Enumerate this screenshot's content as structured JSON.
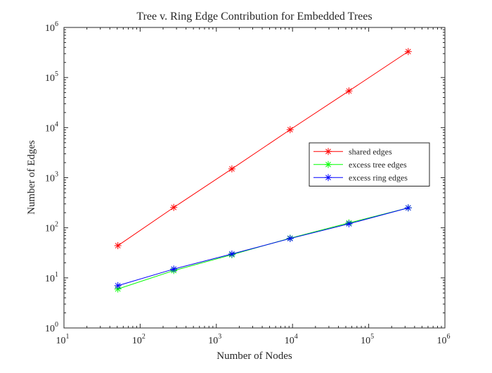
{
  "chart_data": {
    "type": "line",
    "title": "Tree v. Ring Edge Contribution for Embedded Trees",
    "xlabel": "Number of Nodes",
    "ylabel": "Number of Edges",
    "x_scale": "log",
    "y_scale": "log",
    "xlim": [
      10,
      1000000
    ],
    "ylim": [
      1,
      1000000
    ],
    "grid": false,
    "legend_position": "right",
    "x_ticks": [
      {
        "base": "10",
        "exp": "1",
        "value": 10
      },
      {
        "base": "10",
        "exp": "2",
        "value": 100
      },
      {
        "base": "10",
        "exp": "3",
        "value": 1000
      },
      {
        "base": "10",
        "exp": "4",
        "value": 10000
      },
      {
        "base": "10",
        "exp": "5",
        "value": 100000
      },
      {
        "base": "10",
        "exp": "6",
        "value": 1000000
      }
    ],
    "y_ticks": [
      {
        "base": "10",
        "exp": "0",
        "value": 1
      },
      {
        "base": "10",
        "exp": "1",
        "value": 10
      },
      {
        "base": "10",
        "exp": "2",
        "value": 100
      },
      {
        "base": "10",
        "exp": "3",
        "value": 1000
      },
      {
        "base": "10",
        "exp": "4",
        "value": 10000
      },
      {
        "base": "10",
        "exp": "5",
        "value": 100000
      },
      {
        "base": "10",
        "exp": "6",
        "value": 1000000
      }
    ],
    "x": [
      51,
      276,
      1600,
      9300,
      55000,
      330000
    ],
    "series": [
      {
        "name": "shared edges",
        "color": "#ff0000",
        "marker": "asterisk",
        "values": [
          44,
          255,
          1500,
          9100,
          54000,
          330000
        ]
      },
      {
        "name": "excess tree edges",
        "color": "#00ff00",
        "marker": "asterisk",
        "values": [
          6,
          14,
          29,
          62,
          125,
          250
        ]
      },
      {
        "name": "excess ring edges",
        "color": "#0000ff",
        "marker": "asterisk",
        "values": [
          7,
          15,
          30,
          61,
          120,
          250
        ]
      }
    ]
  }
}
